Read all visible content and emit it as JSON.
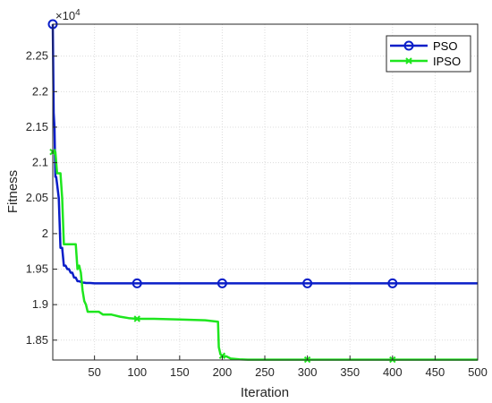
{
  "chart_data": {
    "type": "line",
    "title": "",
    "xlabel": "Iteration",
    "ylabel": "Fitness",
    "y_exponent_base": "×10",
    "y_exponent_power": "4",
    "xlim": [
      1,
      500
    ],
    "ylim": [
      18220,
      22950
    ],
    "xticks": [
      50,
      100,
      150,
      200,
      250,
      300,
      350,
      400,
      450,
      500
    ],
    "yticks": [
      18500,
      19000,
      19500,
      20000,
      20500,
      21000,
      21500,
      22000,
      22500
    ],
    "ytick_labels": [
      "1.85",
      "1.9",
      "1.95",
      "2",
      "2.05",
      "2.1",
      "2.15",
      "2.2",
      "2.25"
    ],
    "grid": true,
    "legend_position": "top-right",
    "series": [
      {
        "name": "PSO",
        "color": "#0a1ec8",
        "marker": "circle",
        "x": [
          1,
          2,
          3,
          4,
          5,
          6,
          8,
          10,
          12,
          14,
          16,
          18,
          20,
          22,
          24,
          26,
          28,
          30,
          32,
          34,
          36,
          38,
          40,
          45,
          50,
          100,
          200,
          300,
          400,
          500
        ],
        "y": [
          22950,
          21700,
          21500,
          20800,
          20800,
          20700,
          20500,
          19800,
          19800,
          19550,
          19550,
          19500,
          19500,
          19450,
          19450,
          19380,
          19380,
          19330,
          19330,
          19320,
          19310,
          19310,
          19305,
          19305,
          19300,
          19300,
          19300,
          19300,
          19300,
          19300
        ],
        "marker_x": [
          1,
          100,
          200,
          300,
          400
        ]
      },
      {
        "name": "IPSO",
        "color": "#1ee61e",
        "marker": "x",
        "x": [
          1,
          2,
          4,
          6,
          8,
          10,
          12,
          14,
          16,
          18,
          20,
          22,
          24,
          26,
          28,
          30,
          32,
          34,
          36,
          38,
          40,
          42,
          44,
          46,
          48,
          50,
          55,
          60,
          70,
          80,
          90,
          100,
          110,
          120,
          150,
          180,
          195,
          196,
          198,
          200,
          205,
          210,
          220,
          230,
          300,
          400,
          500
        ],
        "y": [
          21150,
          21150,
          21150,
          20850,
          20850,
          20850,
          20500,
          19850,
          19850,
          19850,
          19850,
          19850,
          19850,
          19850,
          19850,
          19500,
          19550,
          19450,
          19200,
          19050,
          19000,
          18900,
          18900,
          18900,
          18900,
          18900,
          18900,
          18860,
          18860,
          18830,
          18810,
          18800,
          18800,
          18800,
          18790,
          18780,
          18760,
          18400,
          18300,
          18280,
          18270,
          18240,
          18230,
          18225,
          18225,
          18225,
          18225
        ],
        "marker_x": [
          1,
          100,
          200,
          300,
          400
        ]
      }
    ]
  }
}
